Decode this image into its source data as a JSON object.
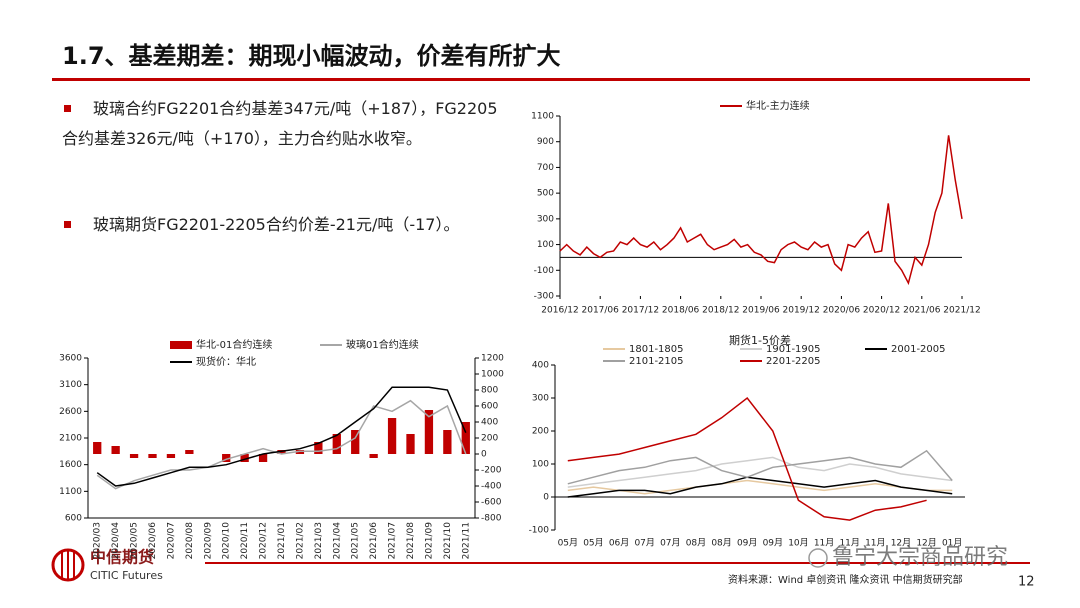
{
  "header": {
    "title": "1.7、基差期差：期现小幅波动，价差有所扩大"
  },
  "bullets": [
    "玻璃合约FG2201合约基差347元/吨（+187），FG2205合约基差326元/吨（+170），主力合约贴水收窄。",
    "玻璃期货FG2201-2205合约价差-21元/吨（-17）。"
  ],
  "footer": {
    "source": "资料来源：Wind 卓创资讯 隆众资讯 中信期货研究部",
    "page": "12",
    "logo_cn": "中信期货",
    "logo_en": "CITIC Futures",
    "watermark": "鲁宁大宗商品研究"
  },
  "chart_data": [
    {
      "type": "line",
      "x": [
        "2016/12",
        "2017/01",
        "2017/02",
        "2017/03",
        "2017/04",
        "2017/05",
        "2017/06",
        "2017/07",
        "2017/08",
        "2017/09",
        "2017/10",
        "2017/11",
        "2017/12",
        "2018/01",
        "2018/02",
        "2018/03",
        "2018/04",
        "2018/05",
        "2018/06",
        "2018/07",
        "2018/08",
        "2018/09",
        "2018/10",
        "2018/11",
        "2018/12",
        "2019/01",
        "2019/02",
        "2019/03",
        "2019/04",
        "2019/05",
        "2019/06",
        "2019/07",
        "2019/08",
        "2019/09",
        "2019/10",
        "2019/11",
        "2019/12",
        "2020/01",
        "2020/02",
        "2020/03",
        "2020/04",
        "2020/05",
        "2020/06",
        "2020/07",
        "2020/08",
        "2020/09",
        "2020/10",
        "2020/11",
        "2020/12",
        "2021/01",
        "2021/02",
        "2021/03",
        "2021/04",
        "2021/05",
        "2021/06",
        "2021/07",
        "2021/08",
        "2021/09",
        "2021/10",
        "2021/11",
        "2021/12"
      ],
      "series": [
        {
          "name": "华北-主力连续",
          "color": "#c00000",
          "values": [
            50,
            100,
            50,
            20,
            80,
            30,
            0,
            40,
            50,
            120,
            100,
            150,
            100,
            80,
            120,
            60,
            100,
            150,
            230,
            120,
            150,
            180,
            100,
            60,
            80,
            100,
            140,
            80,
            100,
            40,
            20,
            -30,
            -40,
            60,
            100,
            120,
            80,
            60,
            120,
            80,
            100,
            -50,
            -100,
            100,
            80,
            150,
            200,
            40,
            50,
            420,
            -30,
            -100,
            -200,
            0,
            -60,
            100,
            350,
            500,
            950,
            600,
            300
          ]
        }
      ],
      "ylim": [
        -300,
        1100
      ],
      "yticks": [
        -300,
        -100,
        100,
        300,
        500,
        700,
        900,
        1100
      ],
      "xticks": [
        "2016/12",
        "2017/06",
        "2017/12",
        "2018/06",
        "2018/12",
        "2019/06",
        "2019/12",
        "2020/06",
        "2020/12",
        "2021/06",
        "2021/12"
      ]
    },
    {
      "type": "bar",
      "categories": [
        "2020/03",
        "2020/04",
        "2020/05",
        "2020/06",
        "2020/07",
        "2020/08",
        "2020/09",
        "2020/10",
        "2020/11",
        "2020/12",
        "2021/01",
        "2021/02",
        "2021/03",
        "2021/04",
        "2021/05",
        "2021/06",
        "2021/07",
        "2021/08",
        "2021/09",
        "2021/10",
        "2021/11"
      ],
      "series": [
        {
          "name": "华北-01合约连续",
          "type": "bar",
          "axis": "y2",
          "color": "#c00000",
          "values": [
            150,
            100,
            -50,
            -50,
            -50,
            50,
            0,
            -100,
            -100,
            -100,
            50,
            50,
            150,
            250,
            300,
            -50,
            450,
            250,
            550,
            300,
            400
          ]
        },
        {
          "name": "玻璃01合约连续",
          "type": "line",
          "color": "#a6a6a6",
          "values": [
            1400,
            1150,
            1300,
            1400,
            1500,
            1500,
            1550,
            1700,
            1800,
            1900,
            1800,
            1850,
            1850,
            1900,
            2100,
            2700,
            2600,
            2800,
            2500,
            2700,
            1800
          ]
        },
        {
          "name": "现货价：华北",
          "type": "line",
          "color": "#000000",
          "values": [
            1450,
            1200,
            1250,
            1350,
            1450,
            1550,
            1550,
            1600,
            1700,
            1800,
            1850,
            1900,
            2000,
            2150,
            2400,
            2650,
            3050,
            3050,
            3050,
            3000,
            2200
          ]
        }
      ],
      "ylim": [
        600,
        3600
      ],
      "yticks": [
        600,
        1100,
        1600,
        2100,
        2600,
        3100,
        3600
      ],
      "y2lim": [
        -800,
        1200
      ],
      "y2ticks": [
        -800,
        -600,
        -400,
        -200,
        0,
        200,
        400,
        600,
        800,
        1000,
        1200
      ]
    },
    {
      "type": "line",
      "title": "期货1-5价差",
      "categories": [
        "05月",
        "05月",
        "06月",
        "07月",
        "07月",
        "08月",
        "08月",
        "09月",
        "09月",
        "10月",
        "11月",
        "11月",
        "11月",
        "12月",
        "12月",
        "01月"
      ],
      "series": [
        {
          "name": "1801-1805",
          "color": "#e6c9a0",
          "values": [
            20,
            30,
            20,
            10,
            20,
            30,
            40,
            50,
            40,
            30,
            20,
            30,
            40,
            30,
            20,
            20
          ]
        },
        {
          "name": "1901-1905",
          "color": "#cfcfcf",
          "values": [
            30,
            40,
            50,
            60,
            70,
            80,
            100,
            110,
            120,
            90,
            80,
            100,
            90,
            70,
            60,
            50
          ]
        },
        {
          "name": "2001-2005",
          "color": "#000000",
          "values": [
            0,
            10,
            20,
            20,
            10,
            30,
            40,
            60,
            50,
            40,
            30,
            40,
            50,
            30,
            20,
            10
          ]
        },
        {
          "name": "2101-2105",
          "color": "#a0a0a0",
          "values": [
            40,
            60,
            80,
            90,
            110,
            120,
            80,
            60,
            90,
            100,
            110,
            120,
            100,
            90,
            140,
            50
          ]
        },
        {
          "name": "2201-2205",
          "color": "#c00000",
          "values": [
            110,
            120,
            130,
            150,
            170,
            190,
            240,
            300,
            200,
            -10,
            -60,
            -70,
            -40,
            -30,
            -10,
            null
          ]
        }
      ],
      "ylim": [
        -100,
        400
      ],
      "yticks": [
        -100,
        0,
        100,
        200,
        300,
        400
      ]
    }
  ]
}
